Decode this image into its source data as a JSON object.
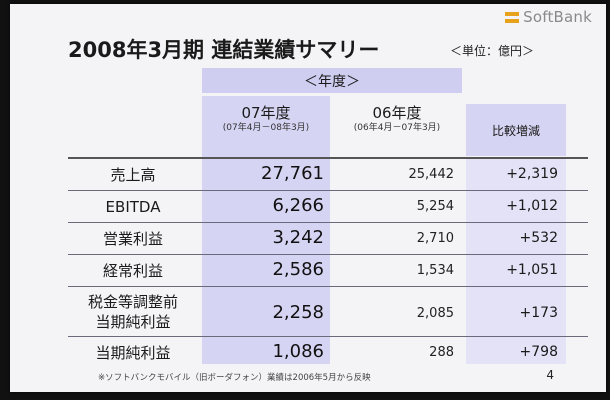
{
  "logo": {
    "text": "SoftBank"
  },
  "title": "2008年3月期 連結業績サマリー",
  "unit": "＜単位：億円＞",
  "table": {
    "year_header": "＜年度＞",
    "columns": [
      {
        "label": "07年度",
        "sub": "(07年4月－08年3月)"
      },
      {
        "label": "06年度",
        "sub": "(06年4月－07年3月)"
      }
    ],
    "diff_header": "比較増減",
    "rows": [
      {
        "label": "売上高",
        "label2": "",
        "cur": "27,761",
        "prev": "25,442",
        "diff": "+2,319"
      },
      {
        "label": "EBITDA",
        "label2": "",
        "cur": "6,266",
        "prev": "5,254",
        "diff": "+1,012"
      },
      {
        "label": "営業利益",
        "label2": "",
        "cur": "3,242",
        "prev": "2,710",
        "diff": "+532"
      },
      {
        "label": "経常利益",
        "label2": "",
        "cur": "2,586",
        "prev": "1,534",
        "diff": "+1,051"
      },
      {
        "label": "税金等調整前",
        "label2": "当期純利益",
        "cur": "2,258",
        "prev": "2,085",
        "diff": "+173"
      },
      {
        "label": "当期純利益",
        "label2": "",
        "cur": "1,086",
        "prev": "288",
        "diff": "+798"
      }
    ]
  },
  "footnote": "※ソフトバンクモバイル（旧ボーダフォン）業績は2006年5月から反映",
  "page_number": "4",
  "colors": {
    "highlight_column": "#d6d4f3",
    "logo_accent": "#e7a21c"
  }
}
